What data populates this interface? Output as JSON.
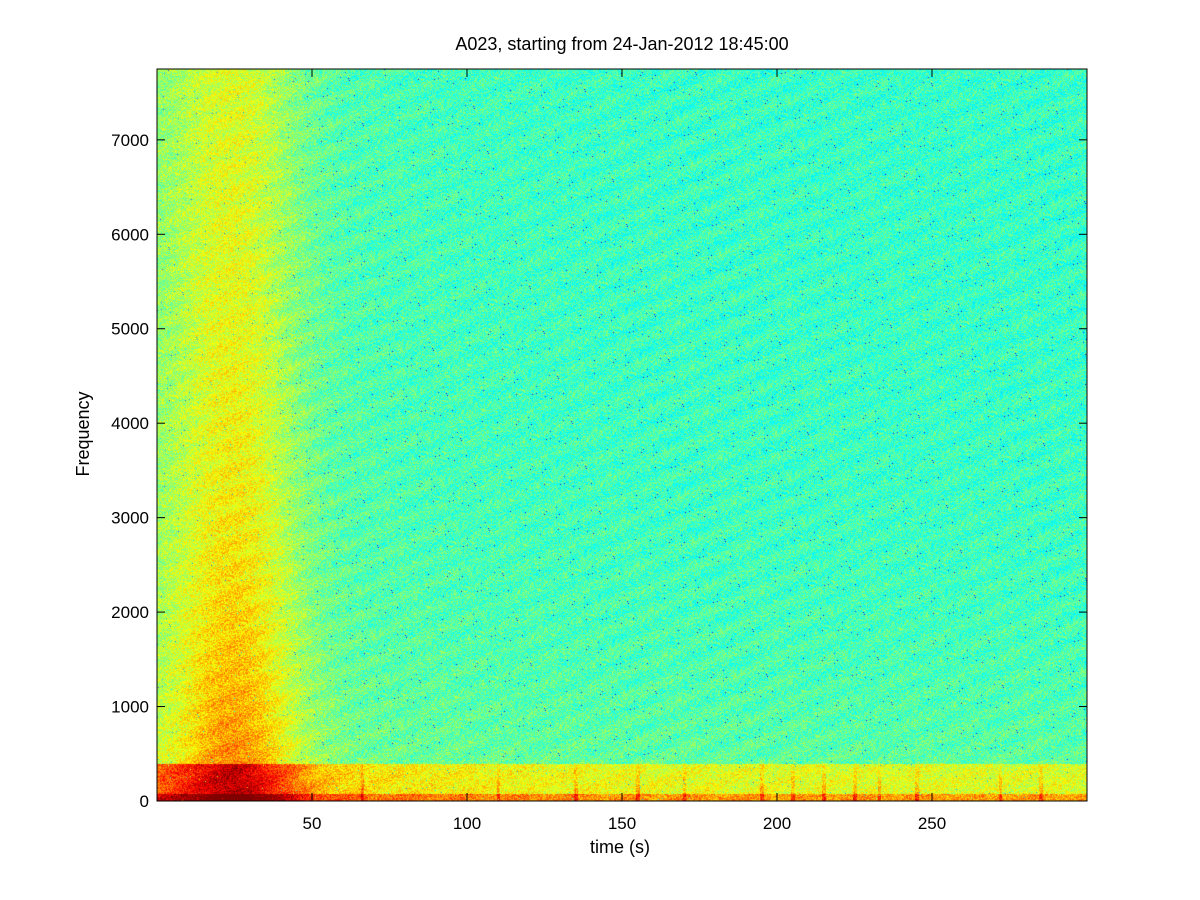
{
  "chart_data": {
    "type": "heatmap",
    "title": "A023, starting from 24-Jan-2012 18:45:00",
    "xlabel": "time (s)",
    "ylabel": "Frequency",
    "xlim": [
      0,
      300
    ],
    "ylim": [
      0,
      7750
    ],
    "x_ticks": [
      50,
      100,
      150,
      200,
      250
    ],
    "y_ticks": [
      0,
      1000,
      2000,
      3000,
      4000,
      5000,
      6000,
      7000
    ],
    "grid": false,
    "legend": "none",
    "colormap": "jet",
    "colors": {
      "background_cyan": "#3cf0c0",
      "mid_green": "#9aff60",
      "high_yellow": "#f0ff20",
      "hot_orange": "#ff9a10",
      "hot_red": "#e02008"
    },
    "features": {
      "broadband_event_x_center": 25,
      "broadband_event_x_halfwidth": 20,
      "low_freq_band_max": 400,
      "transient_spikes_x": [
        66,
        110,
        135,
        155,
        170,
        195,
        205,
        215,
        225,
        233,
        245,
        272,
        285
      ]
    }
  }
}
